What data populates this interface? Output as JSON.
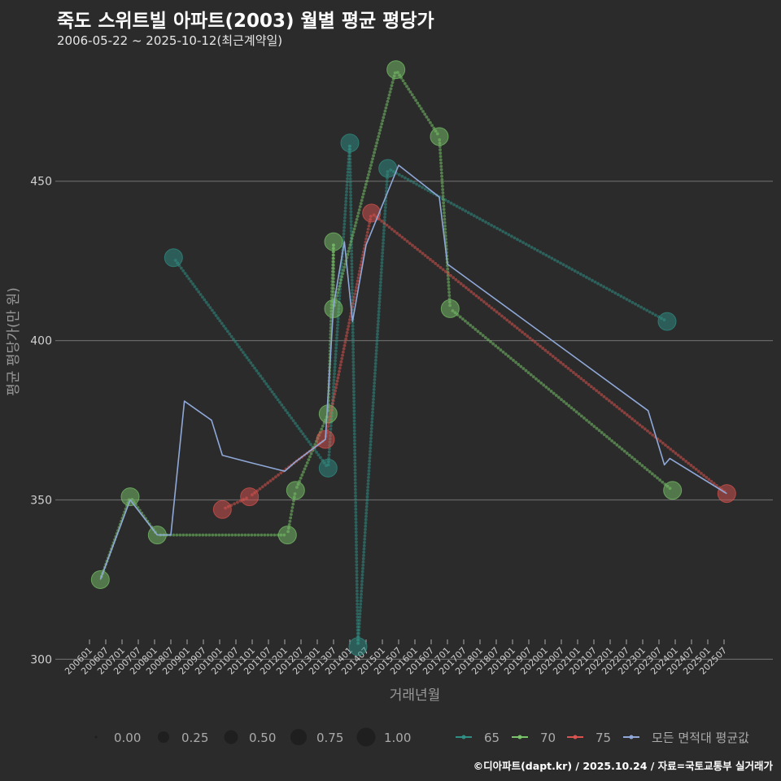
{
  "chart_data": {
    "type": "line",
    "title": "죽도 스위트빌 아파트(2003) 월별 평균 평당가",
    "subtitle": "2006-05-22 ~ 2025-10-12(최근계약일)",
    "xlabel": "거래년월",
    "ylabel": "평균 평당가(만 원)",
    "ylim": [
      295,
      490
    ],
    "yticks": [
      300,
      350,
      400,
      450
    ],
    "xticks": [
      "200601",
      "200607",
      "200701",
      "200707",
      "200801",
      "200807",
      "200901",
      "200907",
      "201001",
      "201007",
      "201101",
      "201107",
      "201201",
      "201207",
      "201301",
      "201307",
      "201401",
      "201407",
      "201501",
      "201507",
      "201601",
      "201607",
      "201701",
      "201707",
      "201801",
      "201807",
      "201901",
      "201907",
      "202001",
      "202007",
      "202101",
      "202107",
      "202201",
      "202207",
      "202301",
      "202307",
      "202401",
      "202407",
      "202501",
      "202507"
    ],
    "size_legend": {
      "labels": [
        "0.00",
        "0.25",
        "0.50",
        "0.75",
        "1.00"
      ]
    },
    "series": [
      {
        "name": "65",
        "color": "#2f8f85",
        "points": [
          {
            "x": "200808",
            "y": 426
          },
          {
            "x": "201305",
            "y": 360
          },
          {
            "x": "201401",
            "y": 462
          },
          {
            "x": "201404",
            "y": 304
          },
          {
            "x": "201503",
            "y": 454
          },
          {
            "x": "202310",
            "y": 406
          }
        ]
      },
      {
        "name": "70",
        "color": "#79c36a",
        "points": [
          {
            "x": "200605",
            "y": 325
          },
          {
            "x": "200704",
            "y": 351
          },
          {
            "x": "200802",
            "y": 339
          },
          {
            "x": "201202",
            "y": 339
          },
          {
            "x": "201205",
            "y": 353
          },
          {
            "x": "201305",
            "y": 377
          },
          {
            "x": "201307",
            "y": 431
          },
          {
            "x": "201307",
            "y": 410
          },
          {
            "x": "201506",
            "y": 485
          },
          {
            "x": "201610",
            "y": 464
          },
          {
            "x": "201702",
            "y": 410
          },
          {
            "x": "202312",
            "y": 353
          }
        ]
      },
      {
        "name": "75",
        "color": "#d9534f",
        "points": [
          {
            "x": "201002",
            "y": 347
          },
          {
            "x": "201012",
            "y": 351
          },
          {
            "x": "201304",
            "y": 369
          },
          {
            "x": "201409",
            "y": 440
          },
          {
            "x": "202508",
            "y": 352
          }
        ]
      },
      {
        "name": "모든 면적대 평균값",
        "color": "#8fa8d8",
        "points": [
          {
            "x": "200605",
            "y": 325
          },
          {
            "x": "200704",
            "y": 350
          },
          {
            "x": "200802",
            "y": 339
          },
          {
            "x": "200807",
            "y": 339
          },
          {
            "x": "200812",
            "y": 381
          },
          {
            "x": "200910",
            "y": 375
          },
          {
            "x": "201002",
            "y": 364
          },
          {
            "x": "201011",
            "y": 362
          },
          {
            "x": "201201",
            "y": 359
          },
          {
            "x": "201205",
            "y": 362
          },
          {
            "x": "201304",
            "y": 369
          },
          {
            "x": "201307",
            "y": 411
          },
          {
            "x": "201311",
            "y": 431
          },
          {
            "x": "201402",
            "y": 406
          },
          {
            "x": "201407",
            "y": 430
          },
          {
            "x": "201507",
            "y": 455
          },
          {
            "x": "201610",
            "y": 445
          },
          {
            "x": "201701",
            "y": 424
          },
          {
            "x": "202303",
            "y": 378
          },
          {
            "x": "202309",
            "y": 361
          },
          {
            "x": "202311",
            "y": 363
          },
          {
            "x": "202508",
            "y": 352
          }
        ]
      }
    ]
  },
  "caption": "©디아파트(dapt.kr) / 2025.10.24 / 자료=국토교통부 실거래가"
}
